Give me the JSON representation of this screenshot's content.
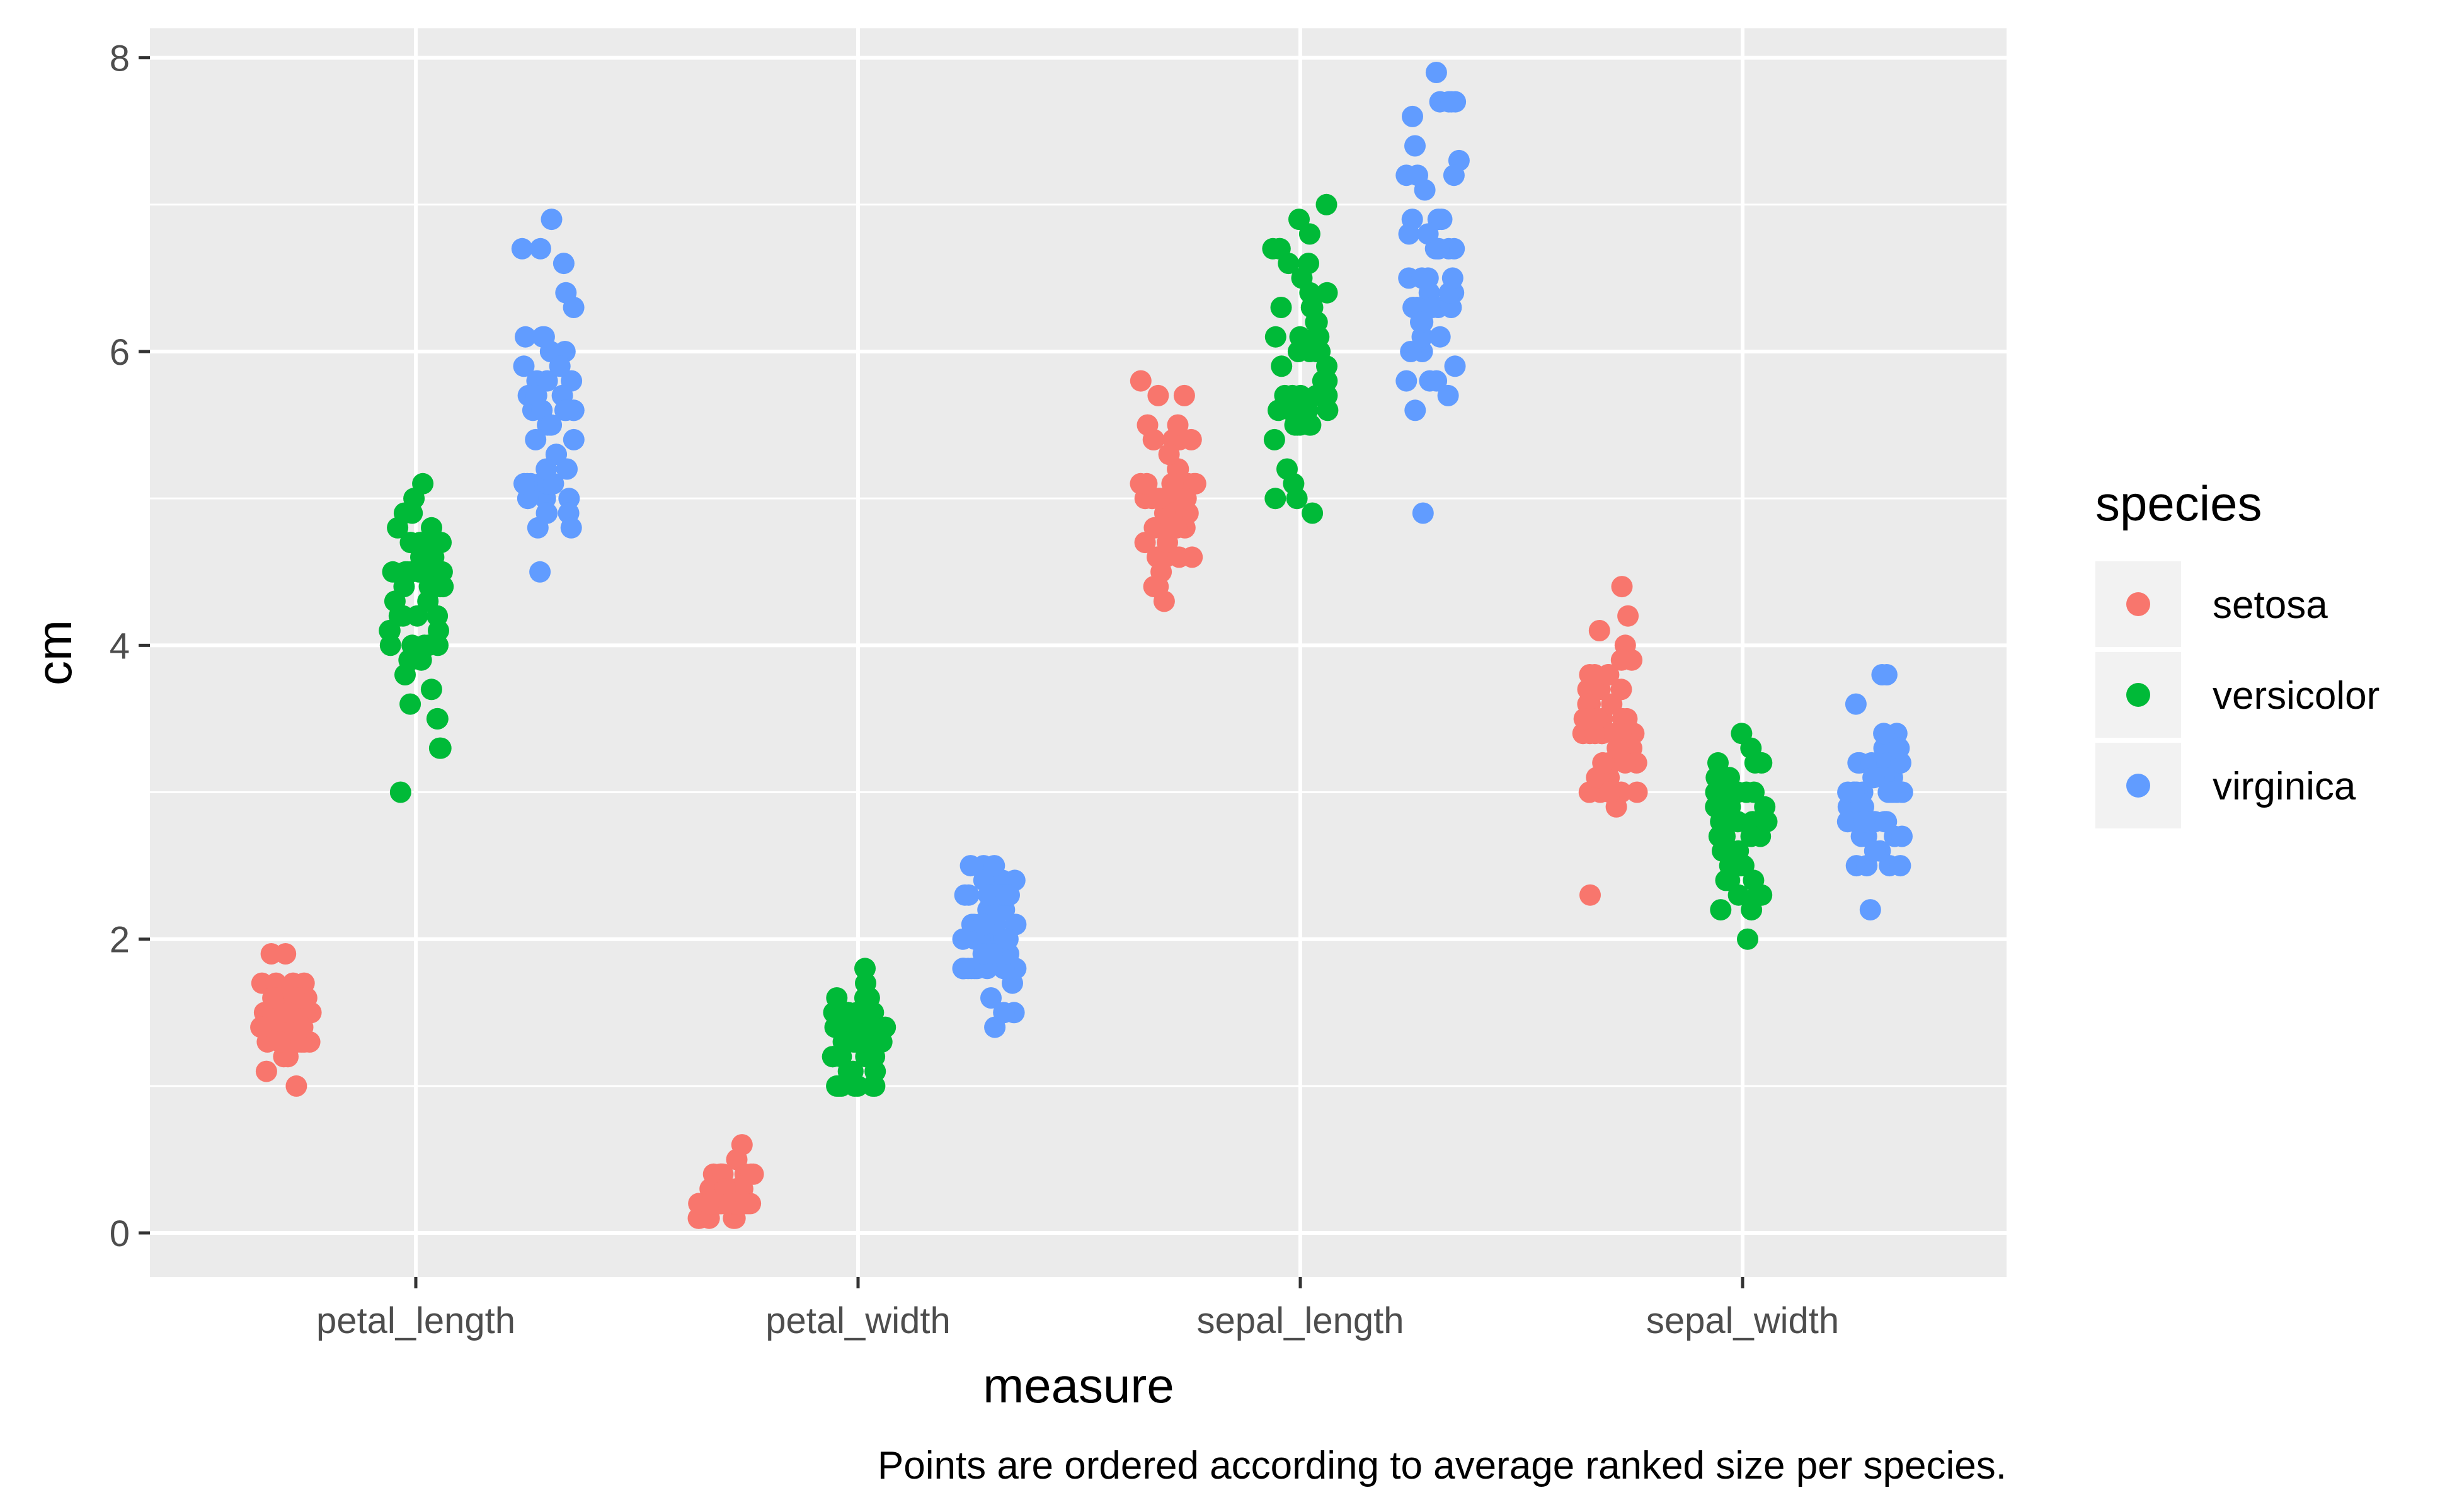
{
  "chart_data": {
    "type": "scatter",
    "jitter": true,
    "xlabel": "measure",
    "ylabel": "cm",
    "caption": "Points are ordered according to average ranked size per species.",
    "ylim": [
      -0.3,
      8.2
    ],
    "yticks": [
      "0",
      "2",
      "4",
      "6",
      "8"
    ],
    "categories": [
      "petal_length",
      "petal_width",
      "sepal_length",
      "sepal_width"
    ],
    "grid": true,
    "legend": {
      "title": "species",
      "position": "right"
    },
    "series": [
      {
        "name": "setosa",
        "color": "#F8766D",
        "values": [
          [
            1.4,
            1.4,
            1.3,
            1.5,
            1.4,
            1.7,
            1.4,
            1.5,
            1.4,
            1.5,
            1.5,
            1.6,
            1.4,
            1.1,
            1.2,
            1.5,
            1.3,
            1.4,
            1.7,
            1.5,
            1.7,
            1.5,
            1.0,
            1.7,
            1.9,
            1.6,
            1.6,
            1.5,
            1.4,
            1.6,
            1.6,
            1.5,
            1.5,
            1.4,
            1.5,
            1.2,
            1.3,
            1.4,
            1.3,
            1.5,
            1.3,
            1.3,
            1.3,
            1.6,
            1.9,
            1.4,
            1.6,
            1.4,
            1.5,
            1.4
          ],
          [
            0.2,
            0.2,
            0.2,
            0.2,
            0.2,
            0.4,
            0.3,
            0.2,
            0.2,
            0.1,
            0.2,
            0.2,
            0.1,
            0.1,
            0.2,
            0.4,
            0.4,
            0.3,
            0.3,
            0.3,
            0.2,
            0.4,
            0.2,
            0.5,
            0.2,
            0.2,
            0.4,
            0.2,
            0.2,
            0.2,
            0.2,
            0.4,
            0.1,
            0.2,
            0.2,
            0.2,
            0.2,
            0.1,
            0.2,
            0.2,
            0.3,
            0.3,
            0.2,
            0.6,
            0.4,
            0.3,
            0.2,
            0.2,
            0.2,
            0.2
          ],
          [
            5.1,
            4.9,
            4.7,
            4.6,
            5.0,
            5.4,
            4.6,
            5.0,
            4.4,
            4.9,
            5.4,
            4.8,
            4.8,
            4.3,
            5.8,
            5.7,
            5.4,
            5.1,
            5.7,
            5.1,
            5.4,
            5.1,
            4.6,
            5.1,
            4.8,
            5.0,
            5.0,
            5.2,
            5.2,
            4.7,
            4.8,
            5.4,
            5.2,
            5.5,
            4.9,
            5.0,
            5.5,
            4.9,
            4.4,
            5.1,
            5.0,
            4.5,
            4.4,
            5.0,
            5.1,
            4.8,
            5.1,
            4.6,
            5.3,
            5.0
          ],
          [
            3.5,
            3.0,
            3.2,
            3.1,
            3.6,
            3.9,
            3.4,
            3.4,
            2.9,
            3.1,
            3.7,
            3.4,
            3.0,
            3.0,
            4.0,
            4.4,
            3.9,
            3.5,
            3.8,
            3.8,
            3.4,
            3.7,
            3.6,
            3.3,
            3.4,
            3.0,
            3.4,
            3.5,
            3.4,
            3.2,
            3.1,
            3.4,
            4.1,
            4.2,
            3.1,
            3.2,
            3.5,
            3.6,
            3.0,
            3.4,
            3.5,
            2.3,
            3.2,
            3.5,
            3.8,
            3.0,
            3.8,
            3.2,
            3.7,
            3.3
          ]
        ]
      },
      {
        "name": "versicolor",
        "color": "#00BA38",
        "values": [
          [
            4.7,
            4.5,
            4.9,
            4.0,
            4.6,
            4.5,
            4.7,
            3.3,
            4.6,
            3.9,
            3.5,
            4.2,
            4.0,
            4.7,
            3.6,
            4.4,
            4.5,
            4.1,
            4.5,
            3.9,
            4.8,
            4.0,
            4.9,
            4.7,
            4.3,
            4.4,
            4.8,
            5.0,
            4.5,
            3.5,
            3.8,
            3.7,
            3.9,
            5.1,
            4.5,
            4.5,
            4.7,
            4.4,
            4.1,
            4.0,
            4.4,
            4.6,
            4.0,
            3.3,
            4.2,
            4.2,
            4.2,
            4.3,
            3.0,
            4.1
          ],
          [
            1.4,
            1.5,
            1.5,
            1.3,
            1.5,
            1.3,
            1.6,
            1.0,
            1.3,
            1.4,
            1.0,
            1.5,
            1.0,
            1.4,
            1.3,
            1.4,
            1.5,
            1.0,
            1.5,
            1.1,
            1.8,
            1.3,
            1.5,
            1.2,
            1.3,
            1.4,
            1.4,
            1.7,
            1.5,
            1.0,
            1.1,
            1.0,
            1.2,
            1.6,
            1.5,
            1.6,
            1.5,
            1.3,
            1.3,
            1.3,
            1.2,
            1.4,
            1.2,
            1.0,
            1.3,
            1.2,
            1.3,
            1.3,
            1.1,
            1.3
          ],
          [
            7.0,
            6.4,
            6.9,
            5.5,
            6.5,
            5.7,
            6.3,
            4.9,
            6.6,
            5.2,
            5.0,
            5.9,
            6.0,
            6.1,
            5.6,
            6.7,
            5.6,
            5.8,
            6.2,
            5.6,
            5.9,
            6.1,
            6.3,
            6.1,
            6.4,
            6.6,
            6.8,
            6.7,
            6.0,
            5.7,
            5.5,
            5.5,
            5.8,
            6.0,
            5.4,
            6.0,
            6.7,
            6.3,
            5.6,
            5.5,
            5.5,
            6.1,
            5.8,
            5.0,
            5.6,
            5.7,
            5.7,
            6.2,
            5.1,
            5.7
          ],
          [
            3.2,
            3.2,
            3.1,
            2.3,
            2.8,
            2.8,
            3.3,
            2.4,
            2.9,
            2.7,
            2.0,
            3.0,
            2.2,
            2.9,
            2.9,
            3.1,
            3.0,
            2.7,
            2.2,
            2.5,
            3.2,
            2.8,
            2.5,
            2.8,
            2.9,
            3.0,
            2.8,
            3.0,
            2.9,
            2.6,
            2.4,
            2.4,
            2.7,
            2.7,
            3.0,
            3.4,
            3.1,
            2.3,
            3.0,
            2.5,
            2.6,
            3.0,
            2.6,
            2.3,
            2.7,
            3.0,
            2.9,
            2.9,
            2.5,
            2.8
          ]
        ]
      },
      {
        "name": "virginica",
        "color": "#619CFF",
        "values": [
          [
            6.0,
            5.1,
            5.9,
            5.6,
            5.8,
            6.6,
            4.5,
            6.3,
            5.8,
            6.1,
            5.1,
            5.3,
            5.5,
            5.0,
            5.1,
            5.3,
            5.5,
            6.7,
            6.9,
            5.0,
            5.7,
            4.9,
            6.7,
            4.9,
            5.7,
            6.0,
            4.8,
            4.9,
            5.6,
            5.8,
            6.1,
            6.4,
            5.6,
            5.1,
            5.6,
            6.1,
            5.6,
            5.5,
            4.8,
            5.4,
            5.6,
            5.1,
            5.1,
            5.9,
            5.7,
            5.2,
            5.0,
            5.2,
            5.4,
            5.1
          ],
          [
            2.5,
            1.9,
            2.1,
            1.8,
            2.2,
            2.1,
            1.7,
            1.8,
            1.8,
            2.5,
            2.0,
            1.9,
            2.1,
            2.0,
            2.4,
            2.3,
            1.8,
            2.2,
            2.3,
            1.5,
            2.3,
            2.0,
            2.0,
            1.8,
            2.1,
            1.8,
            1.8,
            1.8,
            2.1,
            1.6,
            1.9,
            2.0,
            2.2,
            1.5,
            1.4,
            2.3,
            2.4,
            1.8,
            1.8,
            2.1,
            2.4,
            2.3,
            1.9,
            2.3,
            2.5,
            2.3,
            1.9,
            2.0,
            2.3,
            1.8
          ],
          [
            6.3,
            5.8,
            7.1,
            6.3,
            6.5,
            7.6,
            4.9,
            7.3,
            6.7,
            7.2,
            6.5,
            6.4,
            6.8,
            5.7,
            5.8,
            6.4,
            6.5,
            7.7,
            7.7,
            6.0,
            6.9,
            5.6,
            7.7,
            6.3,
            6.7,
            7.2,
            6.2,
            6.1,
            6.4,
            7.2,
            7.4,
            7.9,
            6.4,
            6.3,
            6.1,
            7.7,
            6.3,
            6.4,
            6.0,
            6.9,
            6.7,
            6.9,
            5.8,
            6.8,
            6.7,
            6.7,
            6.3,
            6.5,
            6.2,
            5.9
          ],
          [
            3.3,
            2.7,
            3.0,
            2.9,
            3.0,
            3.0,
            2.5,
            2.9,
            2.5,
            3.6,
            3.2,
            2.7,
            3.0,
            2.5,
            2.8,
            3.2,
            3.0,
            3.8,
            2.6,
            2.2,
            3.2,
            2.8,
            2.8,
            2.7,
            3.3,
            3.2,
            2.8,
            3.0,
            2.8,
            3.0,
            2.8,
            3.8,
            2.8,
            2.8,
            2.6,
            3.0,
            3.4,
            3.1,
            3.0,
            3.1,
            3.1,
            3.1,
            2.7,
            3.2,
            3.3,
            3.0,
            2.5,
            3.0,
            3.4,
            3.0
          ]
        ]
      }
    ]
  }
}
